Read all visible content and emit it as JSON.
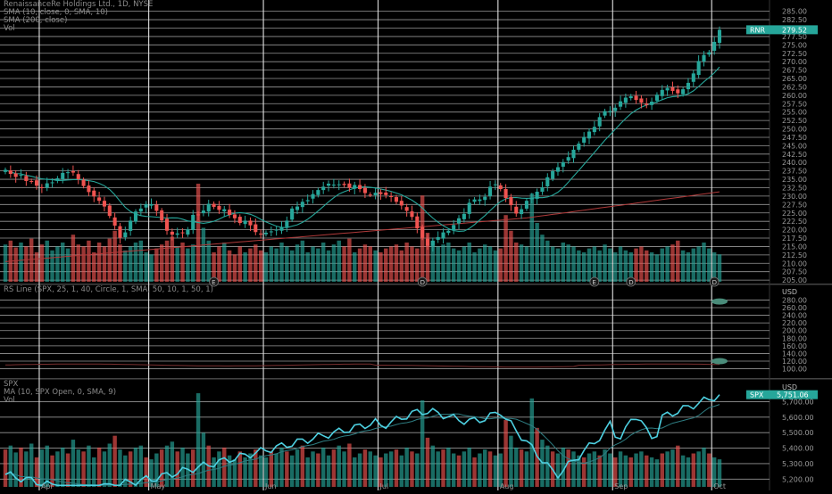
{
  "chart_data": [
    {
      "type": "candlestick",
      "title": "RenaissanceRe Holdings Ltd., 1D, NYSE",
      "legend": [
        "RenaissanceRe Holdings Ltd., 1D, NYSE",
        "SMA (10, close, 0, SMA, 10)",
        "SMA (200, close)",
        "Vol"
      ],
      "last_price_badge": {
        "label": "RNR",
        "value": "279.52"
      },
      "y_ticks": [
        "285.00",
        "282.50",
        "280.00",
        "277.50",
        "275.00",
        "272.50",
        "270.00",
        "267.50",
        "265.00",
        "262.50",
        "260.00",
        "257.50",
        "255.00",
        "252.50",
        "250.00",
        "247.50",
        "245.00",
        "242.50",
        "240.00",
        "237.50",
        "235.00",
        "232.50",
        "230.00",
        "227.50",
        "225.00",
        "222.50",
        "220.00",
        "217.50",
        "215.00",
        "212.50",
        "210.00",
        "207.50",
        "205.00"
      ],
      "ylim": [
        204.5,
        286.5
      ],
      "x_labels": [
        "Apr",
        "May",
        "Jun",
        "Jul",
        "Aug",
        "Sep",
        "Oct"
      ],
      "event_markers": [
        "E",
        "D",
        "E",
        "D",
        "D"
      ],
      "close": [
        237.8,
        236.6,
        235.7,
        236.3,
        234.5,
        234.4,
        233.1,
        232.6,
        233.8,
        234.1,
        235.3,
        236.9,
        237.1,
        237.0,
        235.0,
        233.0,
        231.2,
        229.9,
        228.6,
        226.9,
        224.1,
        221.2,
        217.6,
        219.2,
        222.7,
        225.4,
        226.3,
        227.6,
        227.6,
        225.6,
        222.8,
        219.7,
        218.5,
        218.9,
        219.0,
        220.1,
        224.4,
        224.5,
        225.7,
        227.7,
        226.8,
        225.9,
        226.1,
        224.4,
        223.4,
        222.0,
        222.7,
        221.3,
        219.3,
        218.8,
        219.1,
        219.5,
        220.0,
        220.8,
        222.7,
        226.3,
        226.9,
        228.3,
        228.8,
        230.6,
        231.8,
        232.8,
        233.7,
        233.4,
        233.5,
        233.3,
        232.5,
        233.3,
        232.1,
        230.9,
        230.4,
        231.0,
        230.6,
        230.3,
        229.7,
        228.3,
        227.2,
        225.6,
        223.8,
        220.4,
        217.6,
        215.2,
        216.7,
        217.8,
        219.2,
        219.7,
        221.4,
        223.4,
        224.7,
        228.0,
        229.0,
        229.0,
        229.8,
        232.8,
        233.5,
        232.1,
        229.4,
        227.3,
        224.8,
        226.1,
        228.6,
        229.5,
        231.3,
        232.6,
        235.6,
        237.4,
        238.6,
        240.1,
        241.6,
        243.8,
        245.6,
        247.6,
        249.2,
        250.6,
        253.5,
        255.3,
        255.3,
        256.3,
        258.2,
        259.3,
        259.7,
        258.6,
        257.8,
        257.1,
        258.1,
        260.2,
        261.6,
        262.2,
        261.3,
        260.6,
        261.8,
        263.7,
        266.5,
        270.2,
        272.0,
        272.8,
        275.9,
        279.5
      ],
      "volume": [
        0.38,
        0.42,
        0.35,
        0.4,
        0.36,
        0.44,
        0.3,
        0.38,
        0.42,
        0.32,
        0.36,
        0.4,
        0.34,
        0.48,
        0.38,
        0.36,
        0.42,
        0.3,
        0.4,
        0.36,
        0.44,
        0.52,
        0.38,
        0.32,
        0.36,
        0.4,
        0.42,
        0.3,
        0.28,
        0.34,
        0.38,
        0.42,
        0.46,
        0.36,
        0.4,
        0.34,
        0.38,
        1.0,
        0.55,
        0.42,
        0.3,
        0.36,
        0.4,
        0.32,
        0.28,
        0.36,
        0.3,
        0.34,
        0.38,
        0.32,
        0.3,
        0.36,
        0.34,
        0.4,
        0.36,
        0.32,
        0.38,
        0.42,
        0.3,
        0.36,
        0.34,
        0.4,
        0.32,
        0.38,
        0.42,
        0.36,
        0.44,
        0.3,
        0.34,
        0.38,
        0.36,
        0.32,
        0.3,
        0.34,
        0.36,
        0.38,
        0.32,
        0.4,
        0.36,
        0.34,
        0.88,
        0.5,
        0.42,
        0.36,
        0.38,
        0.4,
        0.34,
        0.32,
        0.36,
        0.4,
        0.3,
        0.34,
        0.38,
        0.36,
        0.32,
        0.34,
        0.68,
        0.52,
        0.4,
        0.38,
        0.36,
        0.9,
        0.6,
        0.48,
        0.42,
        0.36,
        0.34,
        0.4,
        0.38,
        0.36,
        0.32,
        0.3,
        0.34,
        0.36,
        0.32,
        0.38,
        0.34,
        0.3,
        0.36,
        0.32,
        0.3,
        0.34,
        0.36,
        0.32,
        0.3,
        0.28,
        0.34,
        0.36,
        0.38,
        0.42,
        0.32,
        0.3,
        0.34,
        0.36,
        0.4,
        0.34,
        0.3,
        0.28
      ]
    },
    {
      "type": "line",
      "title": "RS Line (SPX, 25, 1, 40, Circle, 1, SMA, 50, 10, 1, 50, 1)",
      "y_ticks": [
        "280.00",
        "260.00",
        "240.00",
        "220.00",
        "200.00",
        "180.00",
        "160.00",
        "140.00",
        "120.00",
        "100.00"
      ],
      "ylim": [
        92,
        288
      ]
    },
    {
      "type": "line",
      "title": "SPX",
      "legend": [
        "SPX",
        "MA (10, SPX Open, 0, SMA, 9)",
        "Vol"
      ],
      "last_price_badge": {
        "label": "SPX",
        "value": "5,751.06"
      },
      "y_ticks": [
        "5,700.00",
        "5,600.00",
        "5,500.00",
        "5,400.00",
        "5,300.00",
        "5,200.00"
      ],
      "ylim": [
        5150,
        5760
      ]
    }
  ],
  "price_axis_header": {
    "currency": "USD"
  },
  "colors": {
    "up": "#26a69a",
    "down": "#ef5350",
    "sma10": "#26a69a",
    "sma200": "#b03a3a",
    "spx": "#4dd0e1",
    "rs": "#7a2f2f",
    "gridline": "#c8c8c8"
  }
}
